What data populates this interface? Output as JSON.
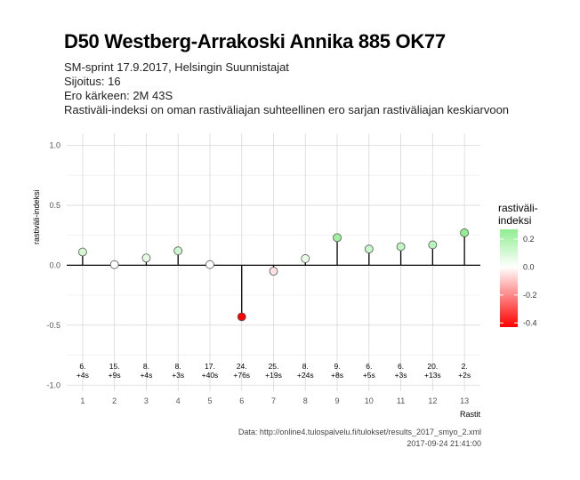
{
  "header": {
    "title": "D50 Westberg-Arrakoski Annika 885 OK77",
    "subtitle_lines": [
      "SM-sprint 17.9.2017, Helsingin Suunnistajat",
      "Sijoitus: 16",
      "Ero kärkeen: 2M 43S",
      "Rastiväli-indeksi on oman rastiväliajan suhteellinen ero sarjan rastiväliajan keskiarvoon"
    ]
  },
  "chart_data": {
    "type": "scatter",
    "xlabel": "Rastit",
    "ylabel": "rastiväli-indeksi",
    "x": [
      1,
      2,
      3,
      4,
      5,
      6,
      7,
      8,
      9,
      10,
      11,
      12,
      13
    ],
    "values": [
      0.11,
      0.005,
      0.06,
      0.12,
      0.005,
      -0.43,
      -0.05,
      0.055,
      0.23,
      0.135,
      0.155,
      0.17,
      0.27
    ],
    "ylim": [
      -1.05,
      1.1
    ],
    "xlim": [
      0.5,
      13.5
    ],
    "yticks": [
      "1.0",
      "0.5",
      "0.0",
      "-0.5",
      "-1.0"
    ],
    "ytick_values": [
      1.0,
      0.5,
      0.0,
      -0.5,
      -1.0
    ],
    "xticks": [
      "1",
      "2",
      "3",
      "4",
      "5",
      "6",
      "7",
      "8",
      "9",
      "10",
      "11",
      "12",
      "13"
    ],
    "rank_labels": [
      "6.",
      "15.",
      "8.",
      "8.",
      "17.",
      "24.",
      "25.",
      "8.",
      "9.",
      "6.",
      "6.",
      "20.",
      "2."
    ],
    "diff_labels": [
      "+4s",
      "+9s",
      "+4s",
      "+3s",
      "+40s",
      "+76s",
      "+19s",
      "+24s",
      "+8s",
      "+5s",
      "+3s",
      "+13s",
      "+2s"
    ],
    "label_y": -0.9,
    "grid": true,
    "legend": {
      "title": "rastiväli-\nindeksi",
      "placement": "right",
      "ticks": [
        "0.2",
        "0.0",
        "-0.2",
        "-0.4"
      ],
      "tick_values": [
        0.2,
        0.0,
        -0.2,
        -0.4
      ],
      "range": [
        -0.43,
        0.27
      ],
      "colors": {
        "low": "#ff0000",
        "mid": "#ffffff",
        "high": "#90ee90"
      }
    }
  },
  "caption": {
    "source": "Data: http://online4.tulospalvelu.fi/tulokset/results_2017_smyo_2.xml",
    "timestamp": "2017-09-24 21:41:00"
  }
}
